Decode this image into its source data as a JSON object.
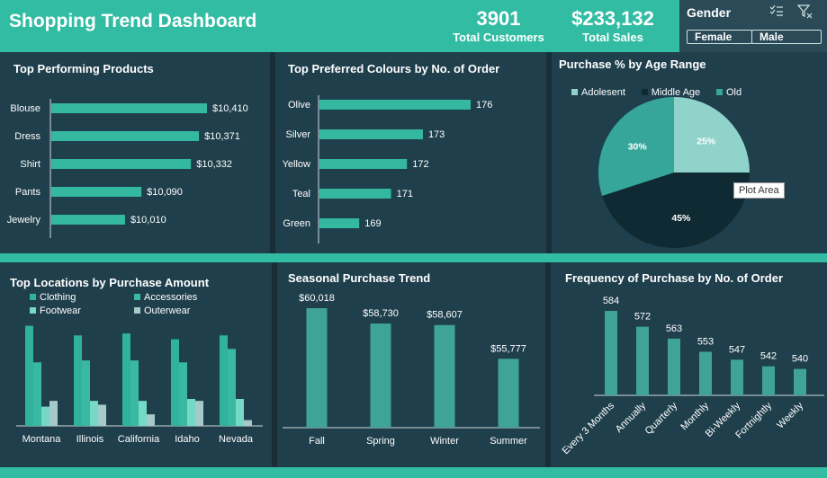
{
  "dashboard": {
    "title": "Shopping Trend Dashboard",
    "kpis": [
      {
        "value": "3901",
        "label": "Total Customers"
      },
      {
        "value": "$233,132",
        "label": "Total Sales"
      }
    ]
  },
  "slicer": {
    "title": "Gender",
    "options": [
      "Female",
      "Male"
    ]
  },
  "tooltip": "Plot Area",
  "colors": {
    "header": "#32bca3",
    "bar": "#34b89f",
    "panel": "#1f3f4c",
    "background": "#2b4a58",
    "pie_adolescent": "#8fd3cb",
    "pie_middle_age": "#0f2a33",
    "pie_old": "#36a69a"
  },
  "chart_data": [
    {
      "id": "top_products",
      "type": "bar",
      "orientation": "horizontal",
      "title": "Top Performing Products",
      "categories": [
        "Blouse",
        "Dress",
        "Shirt",
        "Pants",
        "Jewelry"
      ],
      "values": [
        10410,
        10371,
        10332,
        10090,
        10010
      ],
      "labels": [
        "$10,410",
        "$10,371",
        "$10,332",
        "$10,090",
        "$10,010"
      ]
    },
    {
      "id": "top_colours",
      "type": "bar",
      "orientation": "horizontal",
      "title": "Top Preferred Colours by No. of Order",
      "categories": [
        "Olive",
        "Silver",
        "Yellow",
        "Teal",
        "Green"
      ],
      "values": [
        176,
        173,
        172,
        171,
        169
      ],
      "labels": [
        "176",
        "173",
        "172",
        "171",
        "169"
      ]
    },
    {
      "id": "age_range",
      "type": "pie",
      "title": "Purchase % by Age Range",
      "categories": [
        "Adolesent",
        "Middle Age",
        "Old"
      ],
      "values": [
        25,
        45,
        30
      ],
      "labels": [
        "25%",
        "45%",
        "30%"
      ],
      "legend": "top"
    },
    {
      "id": "top_locations",
      "type": "bar",
      "title": "Top Locations by Purchase Amount",
      "categories": [
        "Montana",
        "Illinois",
        "California",
        "Idaho",
        "Nevada"
      ],
      "legend_order": [
        "Clothing",
        "Accessories",
        "Footwear",
        "Outerwear"
      ],
      "series": [
        {
          "name": "Clothing",
          "values": [
            2600,
            2350,
            2400,
            2250,
            2350
          ],
          "color": "#2fb39c"
        },
        {
          "name": "Accessories",
          "values": [
            1650,
            1700,
            1700,
            1650,
            2000
          ],
          "color": "#39b9a2"
        },
        {
          "name": "Footwear",
          "values": [
            500,
            650,
            650,
            700,
            700
          ],
          "color": "#76d8c6"
        },
        {
          "name": "Outerwear",
          "values": [
            650,
            550,
            300,
            650,
            150
          ],
          "color": "#a6c9c9"
        }
      ]
    },
    {
      "id": "seasonal",
      "type": "bar",
      "title": "Seasonal Purchase Trend",
      "categories": [
        "Fall",
        "Spring",
        "Winter",
        "Summer"
      ],
      "values": [
        60018,
        58730,
        58607,
        55777
      ],
      "labels": [
        "$60,018",
        "$58,730",
        "$58,607",
        "$55,777"
      ]
    },
    {
      "id": "frequency",
      "type": "bar",
      "title": "Frequency of Purchase by No. of Order",
      "categories": [
        "Every 3 Months",
        "Annually",
        "Quarterly",
        "Monthly",
        "Bi-Weekly",
        "Fortnightly",
        "Weekly"
      ],
      "values": [
        584,
        572,
        563,
        553,
        547,
        542,
        540
      ],
      "labels": [
        "584",
        "572",
        "563",
        "553",
        "547",
        "542",
        "540"
      ]
    }
  ]
}
